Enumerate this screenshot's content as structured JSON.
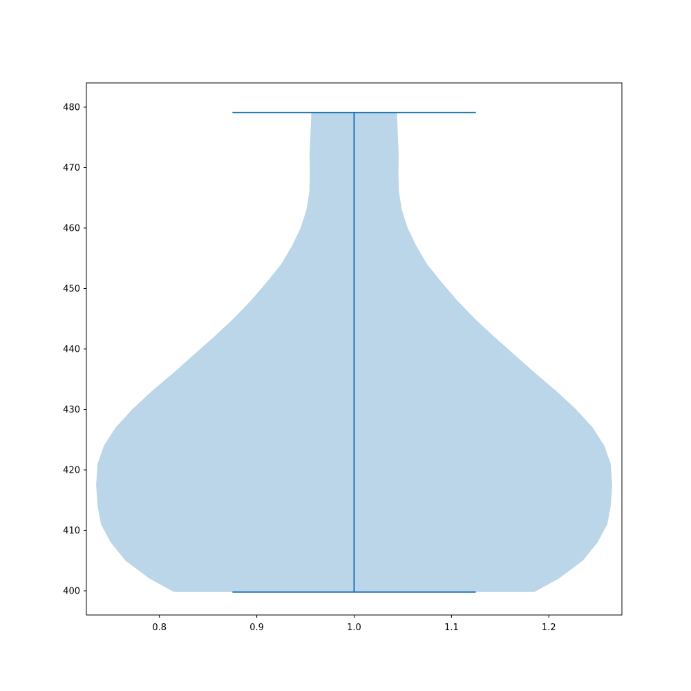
{
  "chart_data": {
    "type": "violin",
    "title": "",
    "xlabel": "",
    "ylabel": "",
    "xlim": [
      0.725,
      1.275
    ],
    "ylim": [
      396,
      484
    ],
    "xticks": [
      0.8,
      0.9,
      1.0,
      1.1,
      1.2
    ],
    "xtick_labels": [
      "0.8",
      "0.9",
      "1.0",
      "1.1",
      "1.2"
    ],
    "yticks": [
      400,
      410,
      420,
      430,
      440,
      450,
      460,
      470,
      480
    ],
    "ytick_labels": [
      "400",
      "410",
      "420",
      "430",
      "440",
      "450",
      "460",
      "470",
      "480"
    ],
    "grid": false,
    "violins": [
      {
        "position": 1.0,
        "min": 399.8,
        "max": 479.1,
        "fill_color": "#bbd6e8",
        "line_color": "#1f77b4",
        "profile": [
          [
            399.8,
            0.185
          ],
          [
            402,
            0.21
          ],
          [
            405,
            0.235
          ],
          [
            408,
            0.25
          ],
          [
            411,
            0.26
          ],
          [
            414,
            0.2635
          ],
          [
            417.5,
            0.265
          ],
          [
            421,
            0.2635
          ],
          [
            424,
            0.257
          ],
          [
            427,
            0.245
          ],
          [
            430,
            0.228
          ],
          [
            433,
            0.208
          ],
          [
            436,
            0.186
          ],
          [
            439,
            0.165
          ],
          [
            442,
            0.144
          ],
          [
            445,
            0.124
          ],
          [
            448,
            0.106
          ],
          [
            451,
            0.09
          ],
          [
            454,
            0.075
          ],
          [
            457,
            0.064
          ],
          [
            460,
            0.055
          ],
          [
            463,
            0.049
          ],
          [
            466,
            0.046
          ],
          [
            469,
            0.0455
          ],
          [
            472,
            0.0458
          ],
          [
            475,
            0.045
          ],
          [
            479.1,
            0.044
          ]
        ]
      }
    ]
  }
}
